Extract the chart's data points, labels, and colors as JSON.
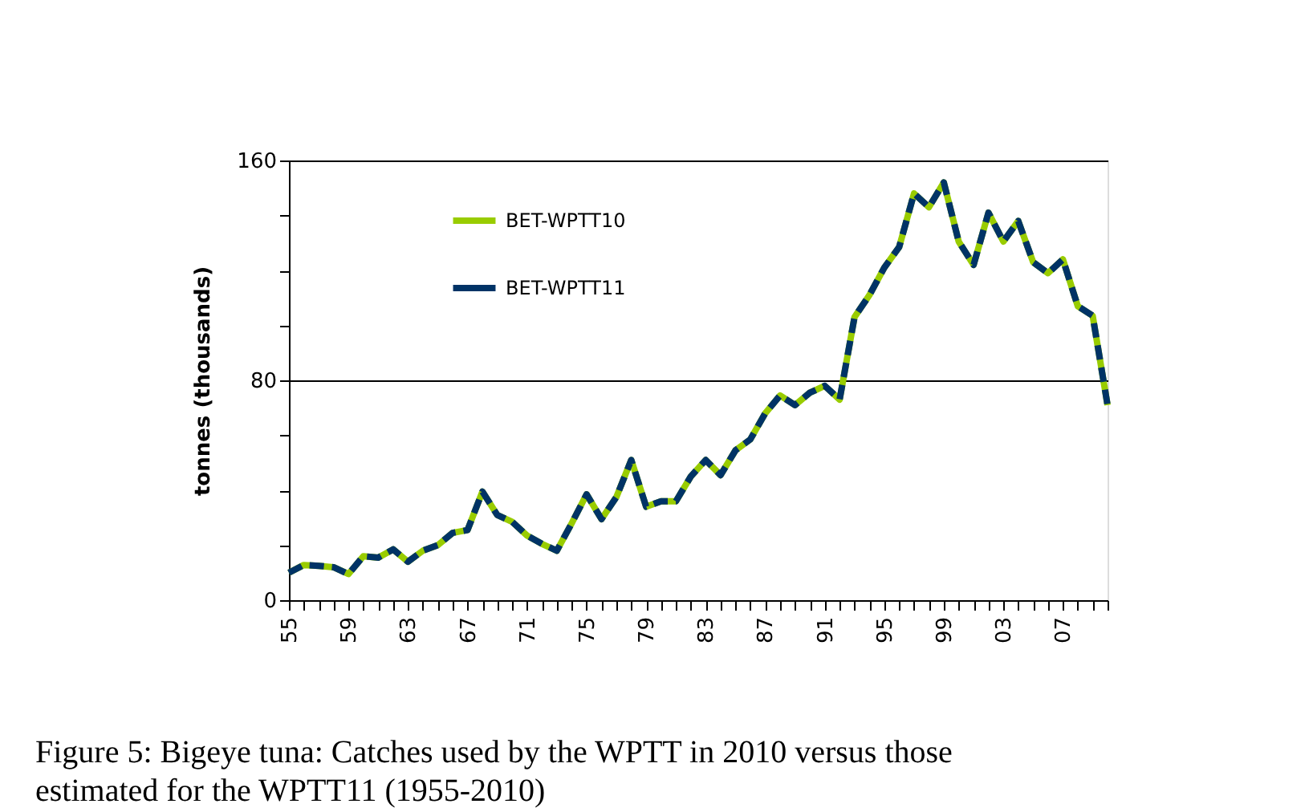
{
  "chart_data": {
    "type": "line",
    "ylabel": "tonnes  (thousands)",
    "annotations": [
      "Figure 5:  Bigeye tuna: Catches used by the WPTT in 2010 versus those estimated for the WPTT11 (1955-2010)"
    ],
    "x": [
      1955,
      1956,
      1957,
      1958,
      1959,
      1960,
      1961,
      1962,
      1963,
      1964,
      1965,
      1966,
      1967,
      1968,
      1969,
      1970,
      1971,
      1972,
      1973,
      1974,
      1975,
      1976,
      1977,
      1978,
      1979,
      1980,
      1981,
      1982,
      1983,
      1984,
      1985,
      1986,
      1987,
      1988,
      1989,
      1990,
      1991,
      1992,
      1993,
      1994,
      1995,
      1996,
      1997,
      1998,
      1999,
      2000,
      2001,
      2002,
      2003,
      2004,
      2005,
      2006,
      2007,
      2008,
      2009,
      2010
    ],
    "series": [
      {
        "name": "BET-WPTT10",
        "color": "#99cc00",
        "line_style": "solid",
        "values": [
          10,
          12.8,
          12.5,
          12,
          9.5,
          16,
          15.5,
          18.5,
          14,
          18,
          20,
          24.5,
          25.5,
          39.5,
          31,
          28.5,
          23.5,
          20.5,
          18,
          28,
          38.5,
          29.5,
          37.5,
          51,
          34,
          36,
          36,
          45,
          51,
          45.5,
          54.5,
          58.5,
          68,
          74.5,
          71,
          75.5,
          78,
          73,
          103,
          111,
          121,
          128.5,
          148,
          143,
          152,
          130.5,
          122,
          141,
          130.5,
          138,
          123,
          119,
          124,
          107,
          103.5,
          71
        ]
      },
      {
        "name": "BET-WPTT11",
        "color": "#003366",
        "line_style": "dashed",
        "values": [
          10,
          12.8,
          12.5,
          12,
          9.5,
          16,
          15.5,
          18.5,
          14,
          18,
          20,
          24.5,
          25.5,
          39.5,
          31,
          28.5,
          23.5,
          20.5,
          18,
          28,
          38.5,
          29.5,
          37.5,
          51,
          34,
          36,
          36,
          45,
          51,
          45.5,
          54.5,
          58.5,
          68,
          74.5,
          71,
          75.5,
          78,
          73,
          103,
          111,
          121,
          128.5,
          148,
          143,
          152,
          130.5,
          122,
          141,
          130.5,
          138,
          123,
          119,
          124,
          107,
          103.5,
          71
        ]
      }
    ],
    "xlim": [
      1955,
      2010
    ],
    "xticks": [
      {
        "value": 1955,
        "label": "55"
      },
      {
        "value": 1956,
        "label": null
      },
      {
        "value": 1957,
        "label": null
      },
      {
        "value": 1958,
        "label": null
      },
      {
        "value": 1959,
        "label": "59"
      },
      {
        "value": 1960,
        "label": null
      },
      {
        "value": 1961,
        "label": null
      },
      {
        "value": 1962,
        "label": null
      },
      {
        "value": 1963,
        "label": "63"
      },
      {
        "value": 1964,
        "label": null
      },
      {
        "value": 1965,
        "label": null
      },
      {
        "value": 1966,
        "label": null
      },
      {
        "value": 1967,
        "label": "67"
      },
      {
        "value": 1968,
        "label": null
      },
      {
        "value": 1969,
        "label": null
      },
      {
        "value": 1970,
        "label": null
      },
      {
        "value": 1971,
        "label": "71"
      },
      {
        "value": 1972,
        "label": null
      },
      {
        "value": 1973,
        "label": null
      },
      {
        "value": 1974,
        "label": null
      },
      {
        "value": 1975,
        "label": "75"
      },
      {
        "value": 1976,
        "label": null
      },
      {
        "value": 1977,
        "label": null
      },
      {
        "value": 1978,
        "label": null
      },
      {
        "value": 1979,
        "label": "79"
      },
      {
        "value": 1980,
        "label": null
      },
      {
        "value": 1981,
        "label": null
      },
      {
        "value": 1982,
        "label": null
      },
      {
        "value": 1983,
        "label": "83"
      },
      {
        "value": 1984,
        "label": null
      },
      {
        "value": 1985,
        "label": null
      },
      {
        "value": 1986,
        "label": null
      },
      {
        "value": 1987,
        "label": "87"
      },
      {
        "value": 1988,
        "label": null
      },
      {
        "value": 1989,
        "label": null
      },
      {
        "value": 1990,
        "label": null
      },
      {
        "value": 1991,
        "label": "91"
      },
      {
        "value": 1992,
        "label": null
      },
      {
        "value": 1993,
        "label": null
      },
      {
        "value": 1994,
        "label": null
      },
      {
        "value": 1995,
        "label": "95"
      },
      {
        "value": 1996,
        "label": null
      },
      {
        "value": 1997,
        "label": null
      },
      {
        "value": 1998,
        "label": null
      },
      {
        "value": 1999,
        "label": "99"
      },
      {
        "value": 2000,
        "label": null
      },
      {
        "value": 2001,
        "label": null
      },
      {
        "value": 2002,
        "label": null
      },
      {
        "value": 2003,
        "label": "03"
      },
      {
        "value": 2004,
        "label": null
      },
      {
        "value": 2005,
        "label": null
      },
      {
        "value": 2006,
        "label": null
      },
      {
        "value": 2007,
        "label": "07"
      },
      {
        "value": 2008,
        "label": null
      },
      {
        "value": 2009,
        "label": null
      },
      {
        "value": 2010,
        "label": null
      }
    ],
    "ylim": [
      0,
      160
    ],
    "yticks": [
      0,
      {
        "value": 20,
        "label": null
      },
      {
        "value": 40,
        "label": null
      },
      {
        "value": 60,
        "label": null
      },
      80,
      {
        "value": 100,
        "label": null
      },
      {
        "value": 120,
        "label": null
      },
      {
        "value": 140,
        "label": null
      },
      160
    ],
    "grid": "y",
    "legend": "top left",
    "marker": "none"
  }
}
